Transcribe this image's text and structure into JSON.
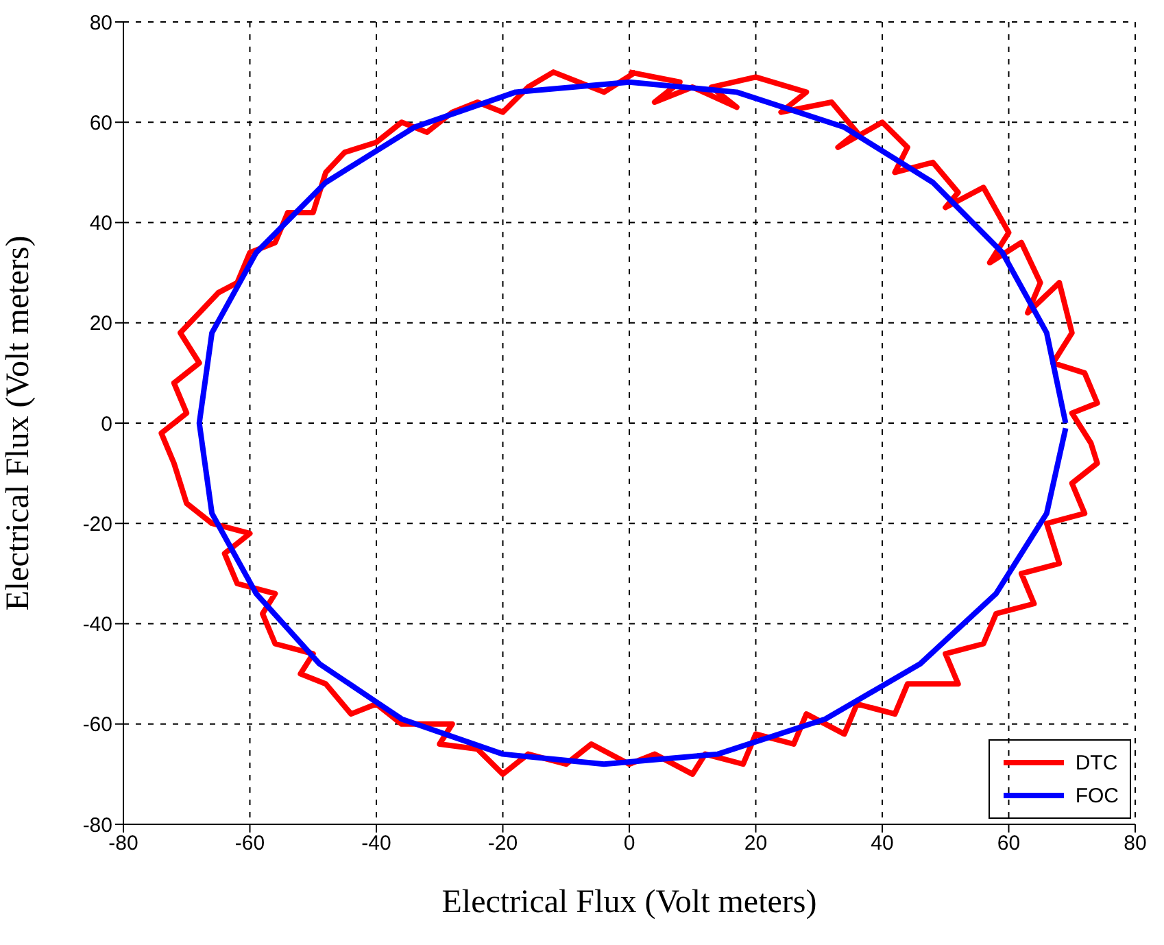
{
  "chart_data": {
    "type": "line",
    "xlabel": "Electrical Flux (Volt meters)",
    "ylabel": "Electrical Flux (Volt meters)",
    "xlim": [
      -80,
      80
    ],
    "xticks": [
      -80,
      -60,
      -40,
      -20,
      0,
      20,
      40,
      60,
      80
    ],
    "ylim": [
      -80,
      80
    ],
    "yticks": [
      -80,
      -60,
      -40,
      -20,
      0,
      20,
      40,
      60,
      80
    ],
    "grid": true,
    "legend": "bottom right",
    "marker": "none",
    "line_style": "solid",
    "series": [
      {
        "name": "DTC",
        "color": "#ff0000",
        "x": [
          0,
          8,
          4,
          10,
          17,
          13,
          20,
          28,
          24,
          32,
          36,
          33,
          40,
          44,
          42,
          48,
          52,
          50,
          56,
          60,
          57,
          62,
          65,
          63,
          68,
          70,
          67,
          72,
          74,
          70,
          73,
          74,
          70,
          72,
          66,
          68,
          62,
          64,
          58,
          56,
          50,
          52,
          44,
          42,
          36,
          34,
          28,
          26,
          20,
          18,
          12,
          10,
          4,
          0,
          -6,
          -10,
          -16,
          -20,
          -24,
          -30,
          -28,
          -36,
          -40,
          -44,
          -48,
          -52,
          -50,
          -56,
          -58,
          -56,
          -62,
          -64,
          -60,
          -66,
          -70,
          -72,
          -74,
          -70,
          -72,
          -68,
          -71,
          -68,
          -65,
          -62,
          -60,
          -56,
          -54,
          -50,
          -48,
          -45,
          -40,
          -36,
          -32,
          -28,
          -24,
          -20,
          -16,
          -12,
          -8,
          -4,
          1
        ],
        "values": [
          70,
          68,
          64,
          67,
          63,
          67,
          69,
          66,
          62,
          64,
          58,
          55,
          60,
          55,
          50,
          52,
          46,
          43,
          47,
          38,
          32,
          36,
          28,
          22,
          28,
          18,
          12,
          10,
          4,
          2,
          -4,
          -8,
          -12,
          -18,
          -20,
          -28,
          -30,
          -36,
          -38,
          -44,
          -46,
          -52,
          -52,
          -58,
          -56,
          -62,
          -58,
          -64,
          -62,
          -68,
          -66,
          -70,
          -66,
          -68,
          -64,
          -68,
          -66,
          -70,
          -65,
          -64,
          -60,
          -60,
          -56,
          -58,
          -52,
          -50,
          -46,
          -44,
          -38,
          -34,
          -32,
          -26,
          -22,
          -20,
          -16,
          -8,
          -2,
          2,
          8,
          12,
          18,
          22,
          26,
          28,
          34,
          36,
          42,
          42,
          50,
          54,
          56,
          60,
          58,
          62,
          64,
          62,
          67,
          70,
          68,
          66,
          70
        ]
      },
      {
        "name": "FOC",
        "color": "#0000ff",
        "x": [
          69,
          66,
          59,
          48,
          34,
          17,
          0,
          -18,
          -34,
          -48,
          -59,
          -66,
          -68,
          -66,
          -59,
          -49,
          -36,
          -20,
          -4,
          14,
          31,
          46,
          58,
          66,
          69
        ],
        "values": [
          0,
          18,
          34,
          48,
          59,
          66,
          68,
          66,
          59,
          48,
          34,
          18,
          0,
          -18,
          -34,
          -48,
          -59,
          -66,
          -68,
          -66,
          -59,
          -48,
          -34,
          -18,
          -1
        ]
      }
    ]
  }
}
